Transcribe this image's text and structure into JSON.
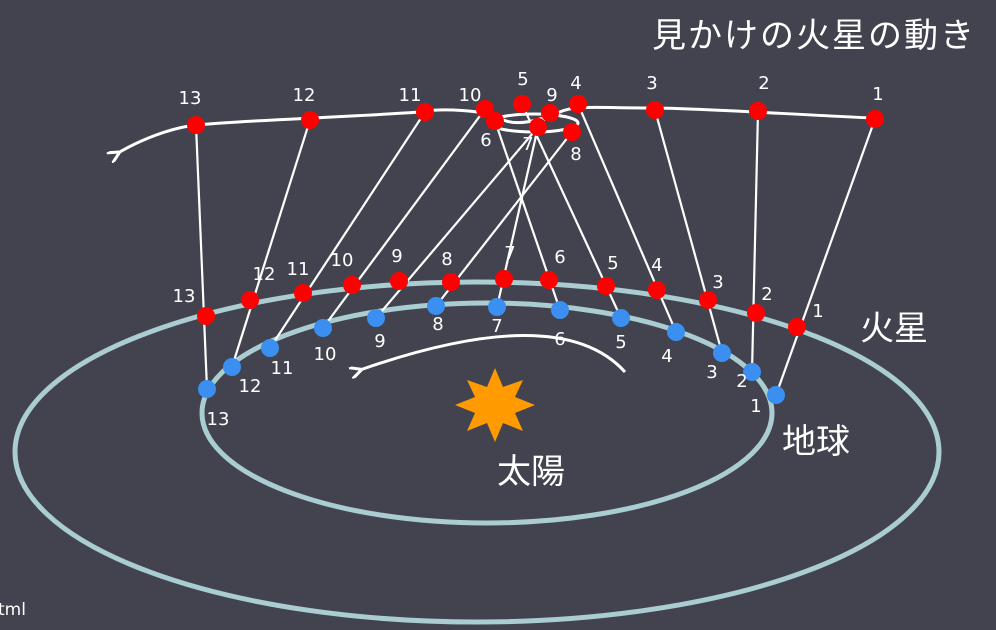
{
  "title": "見かけの火星の動き",
  "labels": {
    "mars": "火星",
    "earth": "地球",
    "sun": "太陽"
  },
  "footer_text": "tml",
  "colors": {
    "background": "#434350",
    "orbit": "#a9cdd0",
    "mars": "#ff0000",
    "earth": "#3a8ff0",
    "sun": "#ff9a00",
    "line": "#ffffff"
  },
  "earth_positions": [
    "1",
    "2",
    "3",
    "4",
    "5",
    "6",
    "7",
    "8",
    "9",
    "10",
    "11",
    "12",
    "13"
  ],
  "mars_positions": [
    "1",
    "2",
    "3",
    "4",
    "5",
    "6",
    "7",
    "8",
    "9",
    "10",
    "11",
    "12",
    "13"
  ],
  "apparent_positions": [
    "1",
    "2",
    "3",
    "4",
    "5",
    "6",
    "7",
    "8",
    "9",
    "10",
    "11",
    "12",
    "13"
  ]
}
